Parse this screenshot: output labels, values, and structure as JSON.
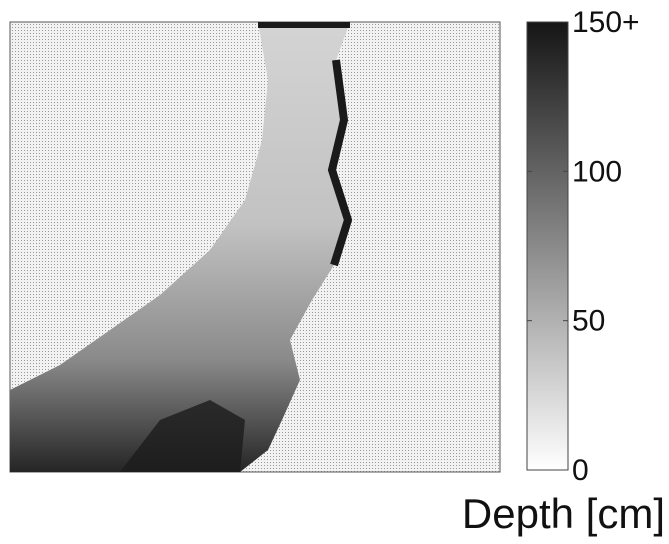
{
  "chart_data": {
    "type": "heatmap",
    "colorbar": {
      "label": "Depth [cm]",
      "lim": [
        0,
        150
      ],
      "ticks": [
        0,
        50,
        100,
        {
          "value": 150,
          "label": "150+"
        }
      ],
      "colors": [
        "#ffffff",
        "#151515"
      ]
    }
  }
}
